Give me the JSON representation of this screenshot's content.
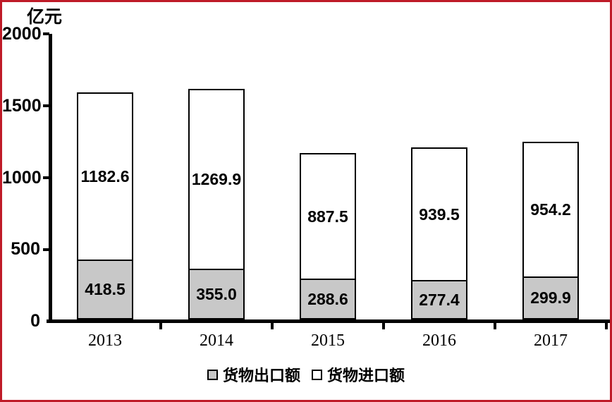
{
  "frame": {
    "border_color": "#bf1b28"
  },
  "chart_data": {
    "type": "bar",
    "subtype": "stacked",
    "title": "",
    "xlabel": "",
    "ylabel": "亿元",
    "categories": [
      "2013",
      "2014",
      "2015",
      "2016",
      "2017"
    ],
    "series": [
      {
        "name": "货物出口额",
        "color": "#c8c8c8",
        "values": [
          418.5,
          355.0,
          288.6,
          277.4,
          299.9
        ],
        "labels": [
          "418.5",
          "355.0",
          "288.6",
          "277.4",
          "299.9"
        ]
      },
      {
        "name": "货物进口额",
        "color": "#ffffff",
        "values": [
          1182.6,
          1269.9,
          887.5,
          939.5,
          954.2
        ],
        "labels": [
          "1182.6",
          "1269.9",
          "887.5",
          "939.5",
          "954.2"
        ]
      }
    ],
    "totals": [
      1601.1,
      1624.9,
      1176.1,
      1216.9,
      1254.1
    ],
    "ylim": [
      0,
      2000
    ],
    "yticks": [
      "0",
      "500",
      "1000",
      "1500",
      "2000"
    ],
    "grid": false,
    "legend_position": "bottom",
    "bar_border_color": "#000000",
    "axis_color": "#000000"
  }
}
